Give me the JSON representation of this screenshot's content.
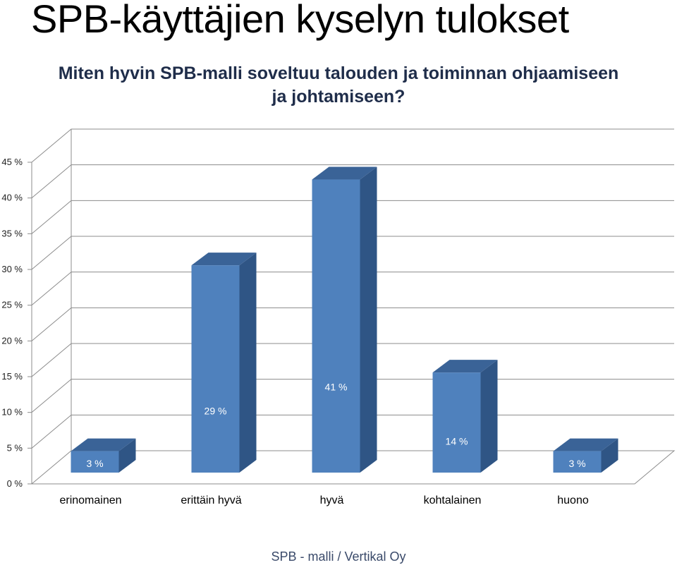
{
  "slide": {
    "title": "SPB-käyttäjien kyselyn tulokset",
    "footer": "SPB - malli  / Vertikal Oy"
  },
  "chart_data": {
    "type": "bar",
    "title_lines": [
      "Miten hyvin SPB-malli soveltuu talouden ja toiminnan ohjaamiseen",
      "ja johtamiseen?"
    ],
    "categories": [
      "erinomainen",
      "erittäin hyvä",
      "hyvä",
      "kohtalainen",
      "huono"
    ],
    "values": [
      3,
      29,
      41,
      14,
      3
    ],
    "data_labels": [
      "3 %",
      "29 %",
      "41 %",
      "14 %",
      "3 %"
    ],
    "yticks": [
      "0 %",
      "5 %",
      "10 %",
      "15 %",
      "20 %",
      "25 %",
      "30 %",
      "35 %",
      "40 %",
      "45 %"
    ],
    "ylim": [
      0,
      45
    ],
    "grid": true,
    "legend": "none",
    "style": "3d-column",
    "colors": {
      "front": "#4f81bd",
      "top": "#3a6397",
      "side": "#2f5585"
    }
  }
}
